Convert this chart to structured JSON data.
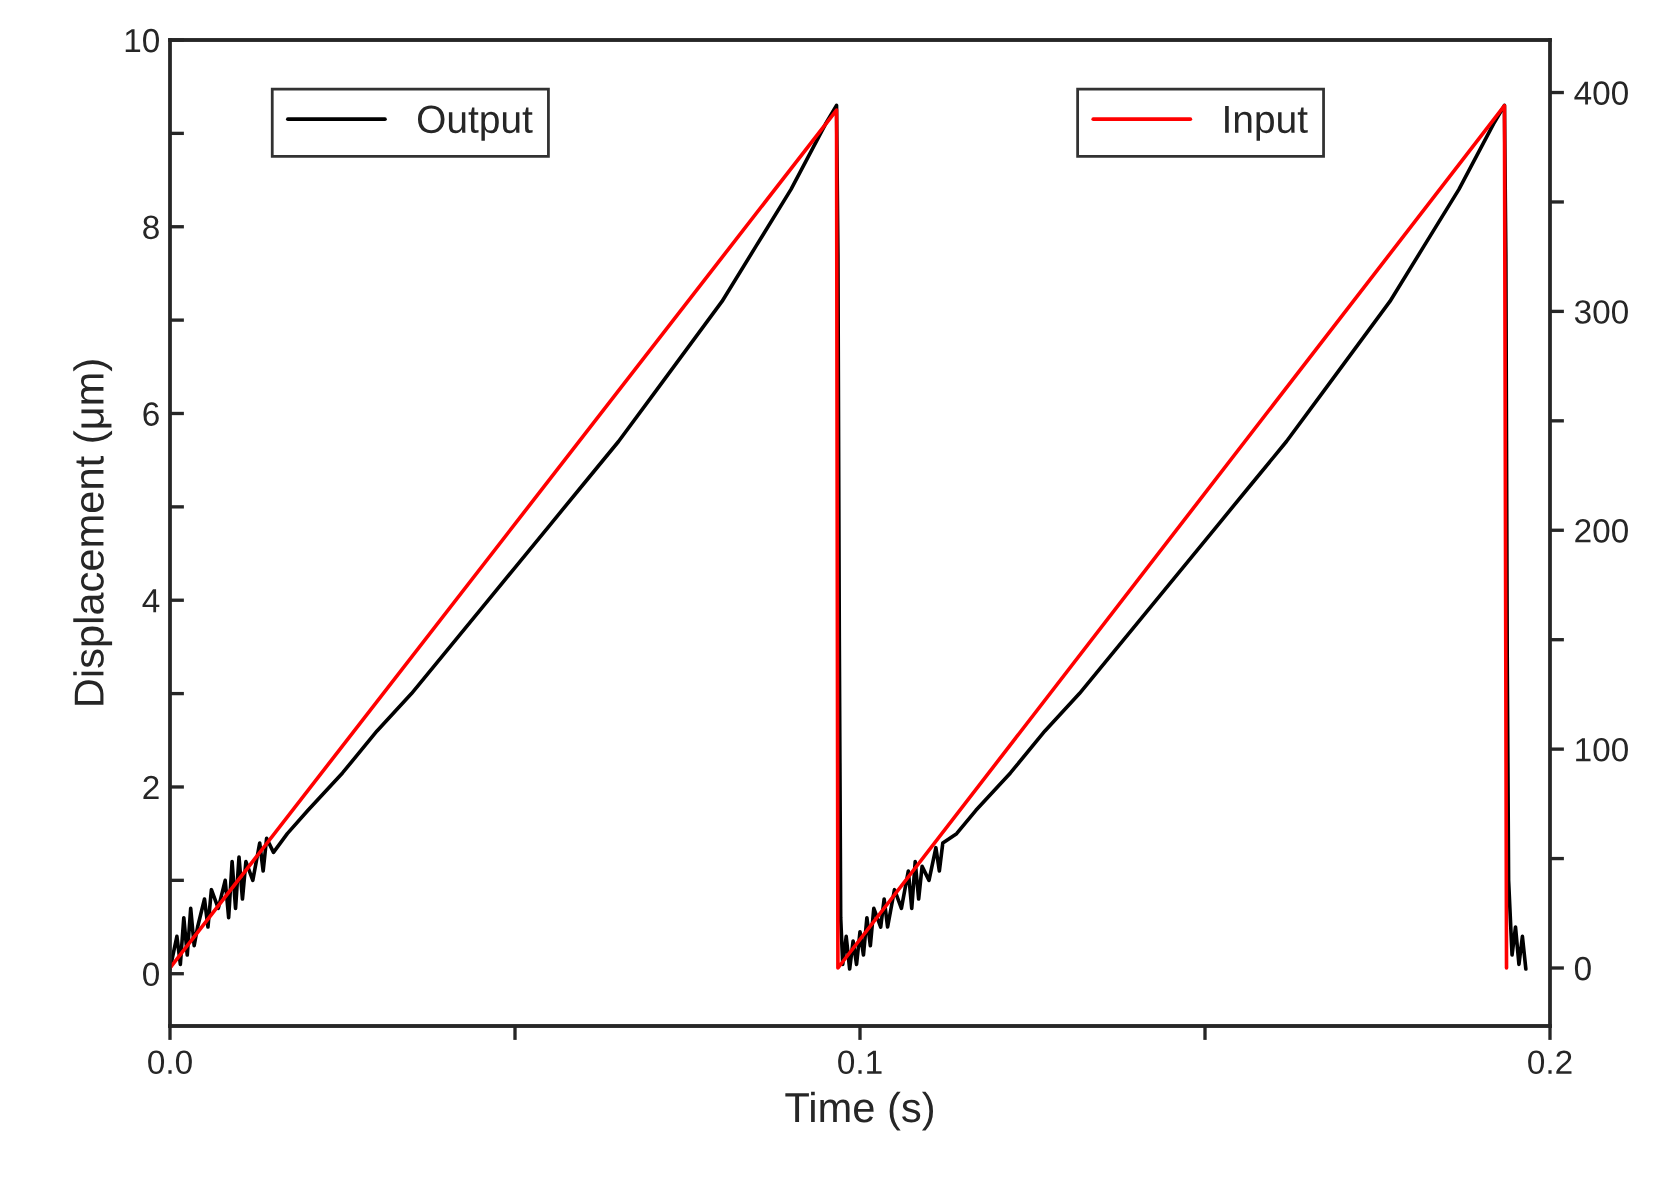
{
  "chart_data": {
    "type": "line",
    "xlabel": "Time (s)",
    "ylabel": "Displacement (μm)",
    "xlim": [
      0,
      0.2
    ],
    "xticks": [
      {
        "value": 0,
        "label": "0.0"
      },
      {
        "value": 0.05,
        "label": null
      },
      {
        "value": 0.1,
        "label": "0.1"
      },
      {
        "value": 0.15,
        "label": null
      },
      {
        "value": 0.2,
        "label": "0.2"
      }
    ],
    "ylim": [
      -0.56,
      10
    ],
    "yticks": [
      0,
      {
        "value": 1,
        "label": null
      },
      2,
      {
        "value": 3,
        "label": null
      },
      4,
      {
        "value": 5,
        "label": null
      },
      6,
      {
        "value": 7,
        "label": null
      },
      8,
      {
        "value": 9,
        "label": null
      },
      10
    ],
    "y2lim": [
      -26.5,
      424
    ],
    "y2ticks": [
      0,
      {
        "value": 50,
        "label": null
      },
      100,
      {
        "value": 150,
        "label": null
      },
      200,
      {
        "value": 250,
        "label": null
      },
      300,
      {
        "value": 350,
        "label": null
      },
      400
    ],
    "legend": "top",
    "grid": false,
    "series": [
      {
        "name": "Output",
        "color": "#000000",
        "x": [
          0,
          0.001,
          0.0015,
          0.002,
          0.0025,
          0.003,
          0.0035,
          0.004,
          0.005,
          0.0055,
          0.006,
          0.007,
          0.008,
          0.0085,
          0.009,
          0.0095,
          0.01,
          0.0105,
          0.011,
          0.012,
          0.013,
          0.0135,
          0.014,
          0.015,
          0.017,
          0.02,
          0.025,
          0.03,
          0.035,
          0.04,
          0.045,
          0.05,
          0.055,
          0.06,
          0.065,
          0.07,
          0.075,
          0.08,
          0.085,
          0.09,
          0.095,
          0.0966,
          0.0968,
          0.097,
          0.0972,
          0.0975,
          0.098,
          0.0985,
          0.099,
          0.0995,
          0.1,
          0.1005,
          0.101,
          0.1015,
          0.102,
          0.103,
          0.1035,
          0.104,
          0.105,
          0.106,
          0.107,
          0.1075,
          0.108,
          0.1085,
          0.109,
          0.11,
          0.111,
          0.1115,
          0.112,
          0.114,
          0.1168,
          0.1218,
          0.1268,
          0.1318,
          0.1368,
          0.1418,
          0.1468,
          0.1518,
          0.1568,
          0.1618,
          0.1668,
          0.1718,
          0.1768,
          0.1818,
          0.1868,
          0.1918,
          0.1934,
          0.1936,
          0.1938,
          0.194,
          0.1945,
          0.195,
          0.1955,
          0.196,
          0.1965
        ],
        "values": [
          0.05,
          0.4,
          0.1,
          0.6,
          0.2,
          0.7,
          0.3,
          0.5,
          0.8,
          0.5,
          0.9,
          0.7,
          1.0,
          0.6,
          1.2,
          0.7,
          1.25,
          0.8,
          1.2,
          1.0,
          1.4,
          1.1,
          1.45,
          1.3,
          1.5,
          1.75,
          2.15,
          2.6,
          3.0,
          3.45,
          3.9,
          4.35,
          4.8,
          5.25,
          5.7,
          6.2,
          6.7,
          7.2,
          7.8,
          8.4,
          9.1,
          9.3,
          7.7,
          3.6,
          0.6,
          0.1,
          0.4,
          0.05,
          0.35,
          0.1,
          0.45,
          0.2,
          0.6,
          0.3,
          0.7,
          0.5,
          0.8,
          0.5,
          0.9,
          0.7,
          1.1,
          0.7,
          1.2,
          0.8,
          1.15,
          1.0,
          1.35,
          1.1,
          1.4,
          1.5,
          1.75,
          2.15,
          2.6,
          3.0,
          3.45,
          3.9,
          4.35,
          4.8,
          5.25,
          5.7,
          6.2,
          6.7,
          7.2,
          7.8,
          8.4,
          9.1,
          9.3,
          7.7,
          3.4,
          1.0,
          0.2,
          0.5,
          0.1,
          0.4,
          0.05
        ]
      },
      {
        "name": "Input",
        "color": "#ff0000",
        "axis": "y2",
        "x": [
          0,
          0.0966,
          0.0968,
          0.1934,
          0.1937
        ],
        "values": [
          0,
          392,
          0,
          394,
          0
        ]
      }
    ]
  }
}
